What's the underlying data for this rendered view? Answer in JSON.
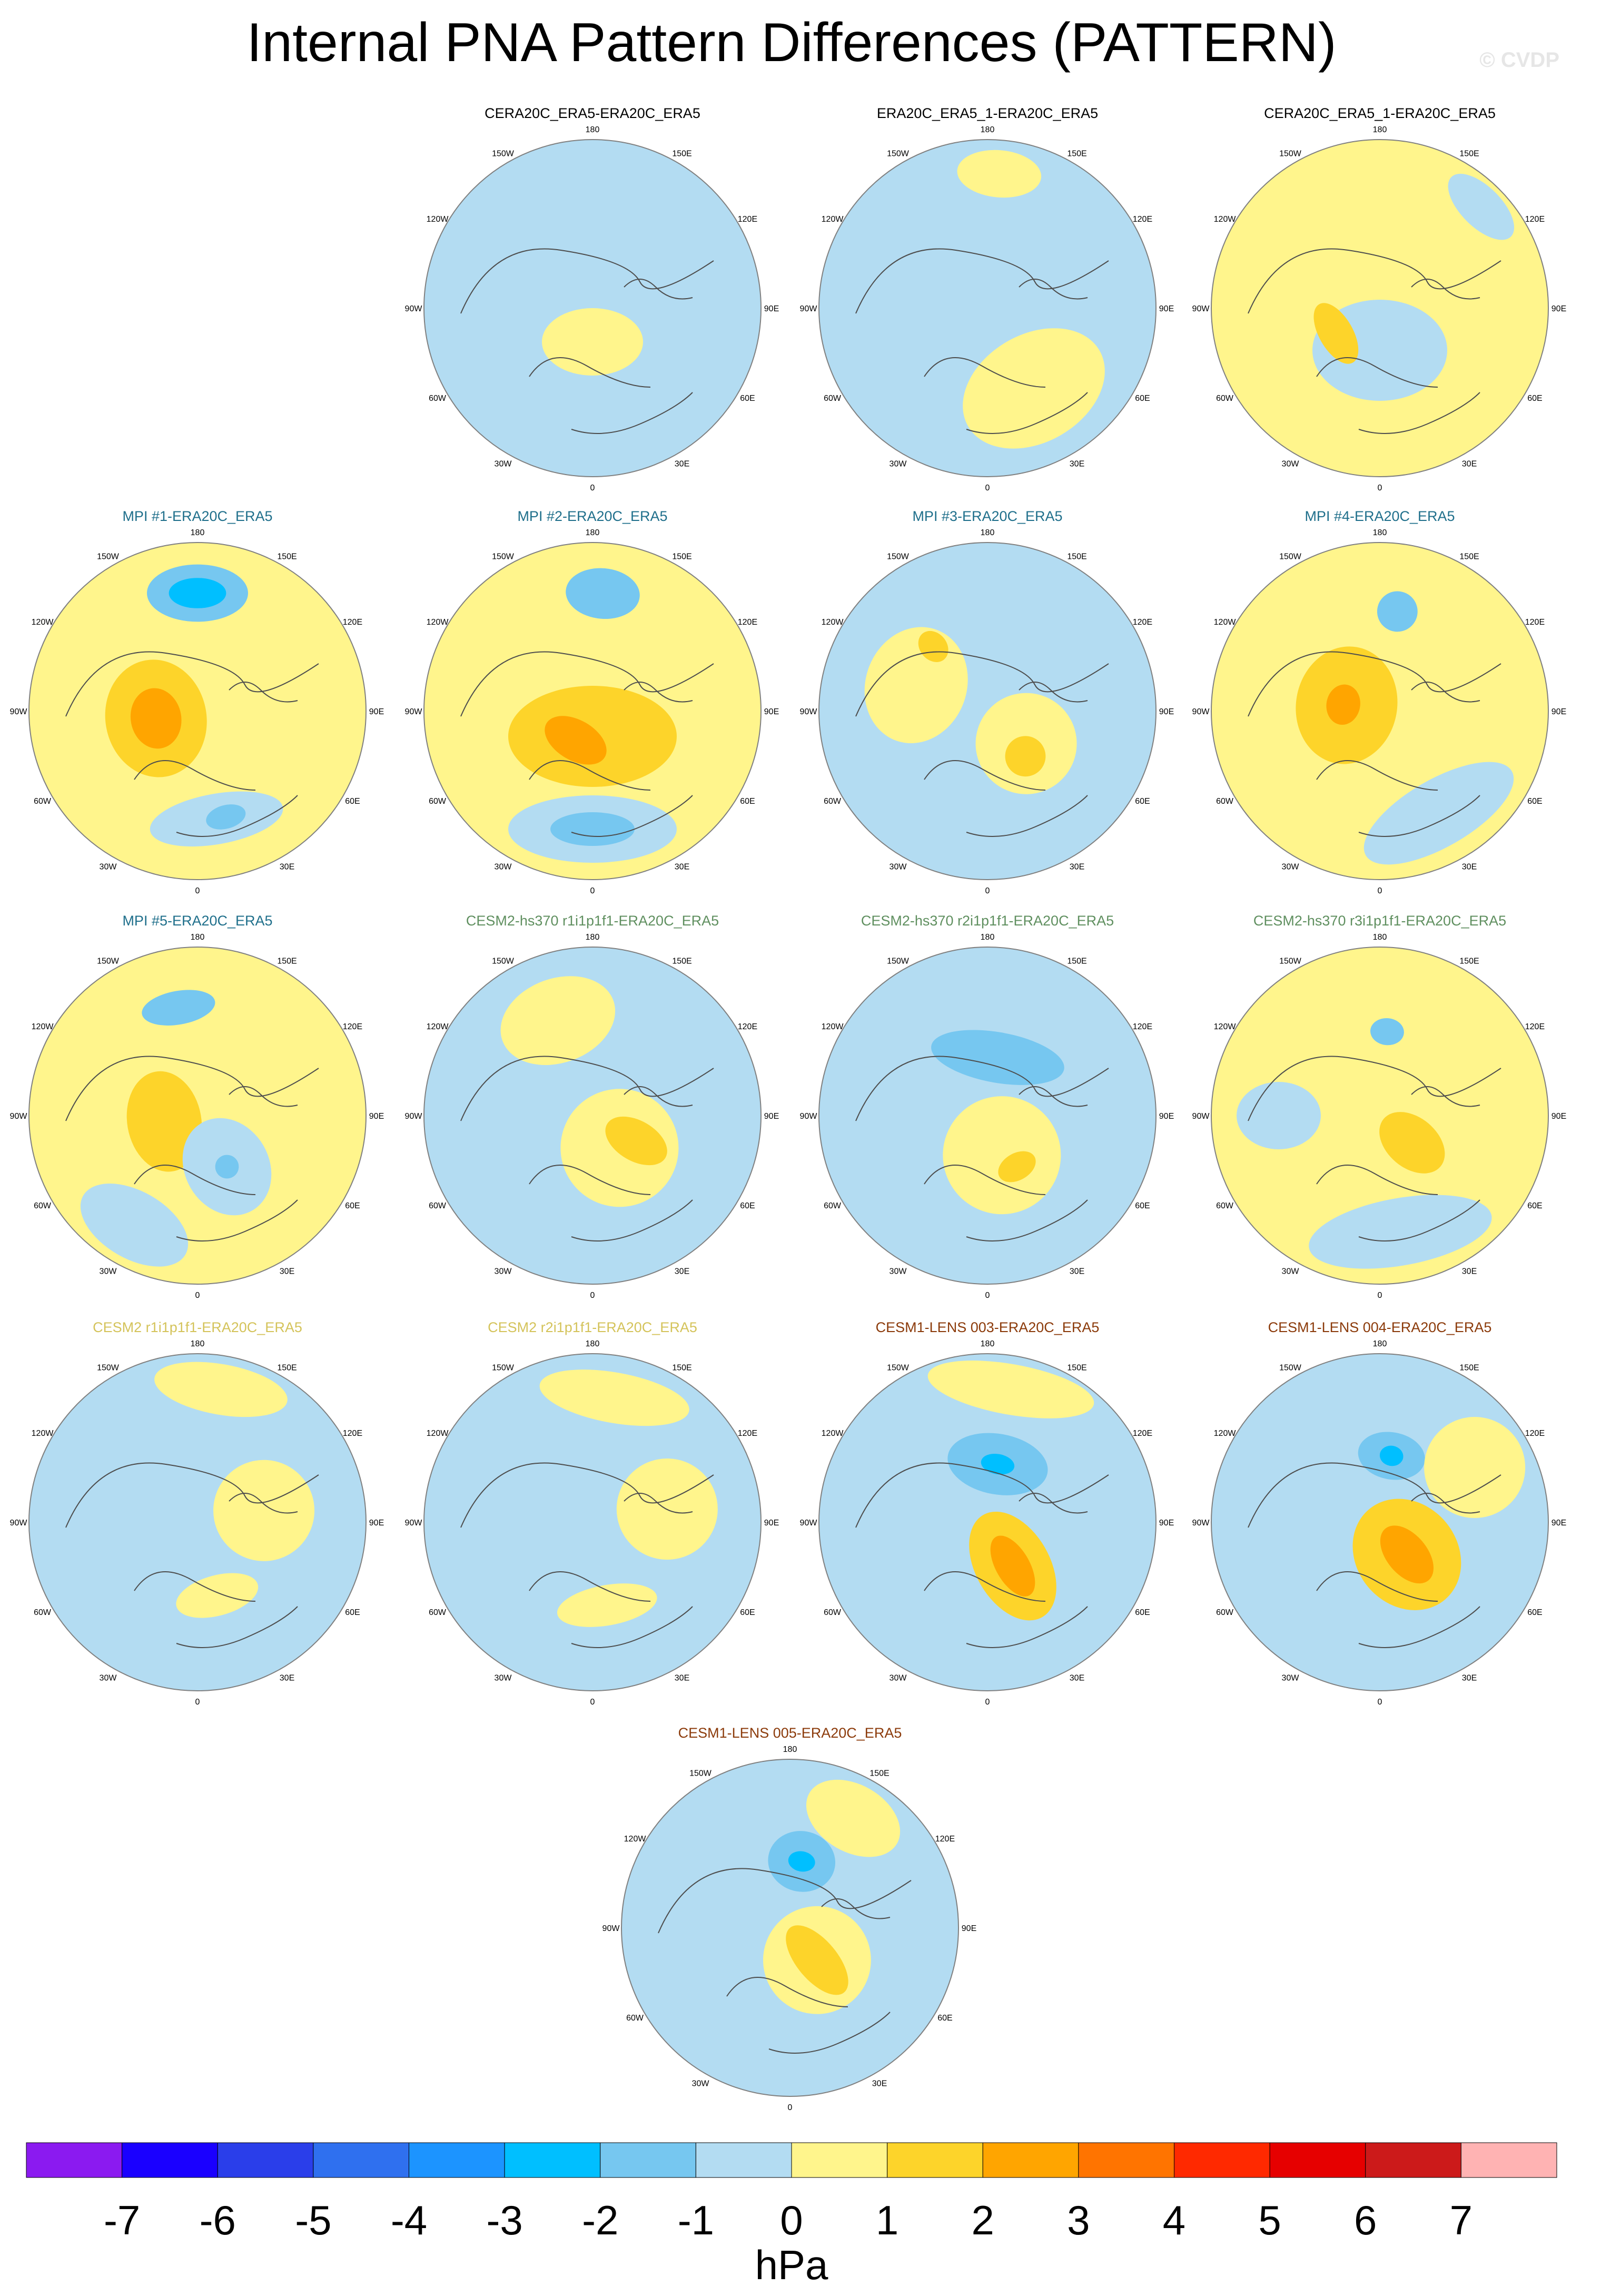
{
  "title": "Internal PNA Pattern Differences (PATTERN)",
  "watermark": "© CVDP",
  "longitude_labels": [
    "180",
    "150E",
    "120E",
    "90E",
    "60E",
    "30E",
    "0",
    "30W",
    "60W",
    "90W",
    "120W",
    "150W"
  ],
  "colors": {
    "outline": "#808080",
    "coast": "#4d4d4d",
    "title_black": "#000000",
    "title_mpi": "#1f6f8b",
    "title_cesm2_hs370": "#5f8f5f",
    "title_cesm2": "#d4c35a",
    "title_cesm1": "#8b3a0a"
  },
  "panels": [
    {
      "title": "CERA20C_ERA5-ERA20C_ERA5",
      "title_color": "#000000",
      "base": "neg_light",
      "features": [
        {
          "lon": 0,
          "r": 0.2,
          "rx": 0.3,
          "ry": 0.2,
          "level": "pos_light"
        },
        {
          "lon": 150,
          "r": 0.75,
          "rx": 0.3,
          "ry": 0.18,
          "level": "neg_light"
        },
        {
          "lon": 270,
          "r": 0.6,
          "rx": 0.18,
          "ry": 0.3,
          "level": "neg_light"
        }
      ]
    },
    {
      "title": "ERA20C_ERA5_1-ERA20C_ERA5",
      "title_color": "#000000",
      "base": "neg_light",
      "features": [
        {
          "lon": 30,
          "r": 0.55,
          "rx": 0.45,
          "ry": 0.32,
          "level": "pos_light"
        },
        {
          "lon": 175,
          "r": 0.8,
          "rx": 0.25,
          "ry": 0.14,
          "level": "pos_light"
        }
      ]
    },
    {
      "title": "CERA20C_ERA5_1-ERA20C_ERA5",
      "title_color": "#000000",
      "base": "pos_light",
      "features": [
        {
          "lon": 0,
          "r": 0.25,
          "rx": 0.4,
          "ry": 0.3,
          "level": "neg_light"
        },
        {
          "lon": 300,
          "r": 0.3,
          "rx": 0.2,
          "ry": 0.1,
          "level": "pos_med"
        },
        {
          "lon": 135,
          "r": 0.85,
          "rx": 0.25,
          "ry": 0.12,
          "level": "neg_light"
        }
      ]
    },
    {
      "title": "MPI #1-ERA20C_ERA5",
      "title_color": "#1f6f8b",
      "base": "pos_light",
      "features": [
        {
          "lon": 180,
          "r": 0.7,
          "rx": 0.3,
          "ry": 0.17,
          "level": "neg_med"
        },
        {
          "lon": 180,
          "r": 0.7,
          "rx": 0.17,
          "ry": 0.09,
          "level": "neg_strong"
        },
        {
          "lon": 280,
          "r": 0.25,
          "rx": 0.35,
          "ry": 0.3,
          "level": "pos_med"
        },
        {
          "lon": 280,
          "r": 0.25,
          "rx": 0.18,
          "ry": 0.15,
          "level": "pos_strong"
        },
        {
          "lon": 10,
          "r": 0.65,
          "rx": 0.4,
          "ry": 0.15,
          "level": "neg_light"
        },
        {
          "lon": 15,
          "r": 0.65,
          "rx": 0.12,
          "ry": 0.07,
          "level": "neg_med"
        }
      ]
    },
    {
      "title": "MPI #2-ERA20C_ERA5",
      "title_color": "#1f6f8b",
      "base": "pos_light",
      "features": [
        {
          "lon": 175,
          "r": 0.7,
          "rx": 0.22,
          "ry": 0.15,
          "level": "neg_med"
        },
        {
          "lon": 0,
          "r": 0.15,
          "rx": 0.5,
          "ry": 0.3,
          "level": "pos_med"
        },
        {
          "lon": 330,
          "r": 0.2,
          "rx": 0.2,
          "ry": 0.12,
          "level": "pos_strong"
        },
        {
          "lon": 0,
          "r": 0.7,
          "rx": 0.5,
          "ry": 0.2,
          "level": "neg_light"
        },
        {
          "lon": 0,
          "r": 0.7,
          "rx": 0.25,
          "ry": 0.1,
          "level": "neg_med"
        }
      ]
    },
    {
      "title": "MPI #3-ERA20C_ERA5",
      "title_color": "#1f6f8b",
      "base": "neg_light",
      "features": [
        {
          "lon": 250,
          "r": 0.45,
          "rx": 0.35,
          "ry": 0.3,
          "level": "pos_light"
        },
        {
          "lon": 50,
          "r": 0.3,
          "rx": 0.3,
          "ry": 0.3,
          "level": "pos_light"
        },
        {
          "lon": 40,
          "r": 0.35,
          "rx": 0.12,
          "ry": 0.12,
          "level": "pos_med"
        },
        {
          "lon": 220,
          "r": 0.5,
          "rx": 0.08,
          "ry": 0.1,
          "level": "pos_med"
        }
      ]
    },
    {
      "title": "MPI #4-ERA20C_ERA5",
      "title_color": "#1f6f8b",
      "base": "pos_light",
      "features": [
        {
          "lon": 170,
          "r": 0.6,
          "rx": 0.12,
          "ry": 0.12,
          "level": "neg_med"
        },
        {
          "lon": 260,
          "r": 0.2,
          "rx": 0.35,
          "ry": 0.3,
          "level": "pos_med"
        },
        {
          "lon": 260,
          "r": 0.22,
          "rx": 0.12,
          "ry": 0.1,
          "level": "pos_strong"
        },
        {
          "lon": 30,
          "r": 0.7,
          "rx": 0.5,
          "ry": 0.2,
          "level": "neg_light"
        }
      ]
    },
    {
      "title": "MPI #5-ERA20C_ERA5",
      "title_color": "#1f6f8b",
      "base": "pos_light",
      "features": [
        {
          "lon": 190,
          "r": 0.65,
          "rx": 0.22,
          "ry": 0.1,
          "level": "neg_med"
        },
        {
          "lon": 280,
          "r": 0.2,
          "rx": 0.3,
          "ry": 0.22,
          "level": "pos_med"
        },
        {
          "lon": 30,
          "r": 0.35,
          "rx": 0.25,
          "ry": 0.3,
          "level": "neg_light"
        },
        {
          "lon": 30,
          "r": 0.35,
          "rx": 0.07,
          "ry": 0.07,
          "level": "neg_med"
        },
        {
          "lon": 330,
          "r": 0.75,
          "rx": 0.35,
          "ry": 0.2,
          "level": "neg_light"
        }
      ]
    },
    {
      "title": "CESM2-hs370 r1i1p1f1-ERA20C_ERA5",
      "title_color": "#5f8f5f",
      "base": "neg_light",
      "features": [
        {
          "lon": 40,
          "r": 0.25,
          "rx": 0.35,
          "ry": 0.35,
          "level": "pos_light"
        },
        {
          "lon": 60,
          "r": 0.3,
          "rx": 0.12,
          "ry": 0.2,
          "level": "pos_med"
        },
        {
          "lon": 200,
          "r": 0.6,
          "rx": 0.35,
          "ry": 0.25,
          "level": "pos_light"
        }
      ]
    },
    {
      "title": "CESM2-hs370 r2i1p1f1-ERA20C_ERA5",
      "title_color": "#5f8f5f",
      "base": "neg_light",
      "features": [
        {
          "lon": 170,
          "r": 0.35,
          "rx": 0.4,
          "ry": 0.15,
          "level": "neg_med"
        },
        {
          "lon": 20,
          "r": 0.25,
          "rx": 0.35,
          "ry": 0.35,
          "level": "pos_light"
        },
        {
          "lon": 30,
          "r": 0.35,
          "rx": 0.12,
          "ry": 0.08,
          "level": "pos_med"
        }
      ]
    },
    {
      "title": "CESM2-hs370 r3i1p1f1-ERA20C_ERA5",
      "title_color": "#5f8f5f",
      "base": "pos_light",
      "features": [
        {
          "lon": 175,
          "r": 0.5,
          "rx": 0.1,
          "ry": 0.08,
          "level": "neg_med"
        },
        {
          "lon": 50,
          "r": 0.25,
          "rx": 0.15,
          "ry": 0.22,
          "level": "pos_med"
        },
        {
          "lon": 10,
          "r": 0.7,
          "rx": 0.55,
          "ry": 0.2,
          "level": "neg_light"
        },
        {
          "lon": 270,
          "r": 0.6,
          "rx": 0.2,
          "ry": 0.25,
          "level": "neg_light"
        }
      ]
    },
    {
      "title": "CESM2 r1i1p1f1-ERA20C_ERA5",
      "title_color": "#d4c35a",
      "base": "neg_light",
      "features": [
        {
          "lon": 170,
          "r": 0.8,
          "rx": 0.4,
          "ry": 0.15,
          "level": "pos_light"
        },
        {
          "lon": 100,
          "r": 0.4,
          "rx": 0.3,
          "ry": 0.3,
          "level": "pos_light"
        },
        {
          "lon": 15,
          "r": 0.45,
          "rx": 0.25,
          "ry": 0.12,
          "level": "pos_light"
        }
      ]
    },
    {
      "title": "CESM2 r2i1p1f1-ERA20C_ERA5",
      "title_color": "#d4c35a",
      "base": "neg_light",
      "features": [
        {
          "lon": 170,
          "r": 0.75,
          "rx": 0.45,
          "ry": 0.15,
          "level": "pos_light"
        },
        {
          "lon": 100,
          "r": 0.45,
          "rx": 0.3,
          "ry": 0.3,
          "level": "pos_light"
        },
        {
          "lon": 10,
          "r": 0.5,
          "rx": 0.3,
          "ry": 0.12,
          "level": "pos_light"
        }
      ]
    },
    {
      "title": "CESM1-LENS 003-ERA20C_ERA5",
      "title_color": "#8b3a0a",
      "base": "neg_light",
      "features": [
        {
          "lon": 170,
          "r": 0.35,
          "rx": 0.3,
          "ry": 0.18,
          "level": "neg_med"
        },
        {
          "lon": 170,
          "r": 0.35,
          "rx": 0.1,
          "ry": 0.06,
          "level": "neg_strong"
        },
        {
          "lon": 30,
          "r": 0.3,
          "rx": 0.22,
          "ry": 0.35,
          "level": "pos_med"
        },
        {
          "lon": 30,
          "r": 0.3,
          "rx": 0.1,
          "ry": 0.2,
          "level": "pos_strong"
        },
        {
          "lon": 170,
          "r": 0.8,
          "rx": 0.5,
          "ry": 0.15,
          "level": "pos_light"
        }
      ]
    },
    {
      "title": "CESM1-LENS 004-ERA20C_ERA5",
      "title_color": "#8b3a0a",
      "base": "neg_light",
      "features": [
        {
          "lon": 170,
          "r": 0.4,
          "rx": 0.2,
          "ry": 0.14,
          "level": "neg_med"
        },
        {
          "lon": 170,
          "r": 0.4,
          "rx": 0.07,
          "ry": 0.06,
          "level": "neg_strong"
        },
        {
          "lon": 40,
          "r": 0.25,
          "rx": 0.3,
          "ry": 0.35,
          "level": "pos_med"
        },
        {
          "lon": 40,
          "r": 0.25,
          "rx": 0.12,
          "ry": 0.2,
          "level": "pos_strong"
        },
        {
          "lon": 120,
          "r": 0.65,
          "rx": 0.3,
          "ry": 0.3,
          "level": "pos_light"
        }
      ]
    },
    {
      "title": "CESM1-LENS 005-ERA20C_ERA5",
      "title_color": "#8b3a0a",
      "base": "neg_light",
      "features": [
        {
          "lon": 170,
          "r": 0.4,
          "rx": 0.2,
          "ry": 0.18,
          "level": "neg_med"
        },
        {
          "lon": 170,
          "r": 0.4,
          "rx": 0.08,
          "ry": 0.06,
          "level": "neg_strong"
        },
        {
          "lon": 40,
          "r": 0.25,
          "rx": 0.32,
          "ry": 0.32,
          "level": "pos_light"
        },
        {
          "lon": 40,
          "r": 0.25,
          "rx": 0.12,
          "ry": 0.25,
          "level": "pos_med"
        },
        {
          "lon": 150,
          "r": 0.75,
          "rx": 0.3,
          "ry": 0.2,
          "level": "pos_light"
        }
      ]
    }
  ],
  "levels": {
    "neg_light": "#b3dcf2",
    "neg_med": "#76c7f0",
    "neg_strong": "#00bfff",
    "pos_light": "#fff58c",
    "pos_med": "#fdd42a",
    "pos_strong": "#ffa500"
  },
  "colorbar": {
    "colors": [
      "#8b1af0",
      "#1a00ff",
      "#2a3eea",
      "#2f70ef",
      "#1c94ff",
      "#00bfff",
      "#76c7f0",
      "#b3dcf2",
      "#fff58c",
      "#fdd42a",
      "#ffa500",
      "#ff7400",
      "#ff2900",
      "#e60000",
      "#cc1a1a",
      "#ffb3b3"
    ],
    "labels": [
      "-7",
      "-6",
      "-5",
      "-4",
      "-3",
      "-2",
      "-1",
      "0",
      "1",
      "2",
      "3",
      "4",
      "5",
      "6",
      "7"
    ],
    "units": "hPa"
  }
}
